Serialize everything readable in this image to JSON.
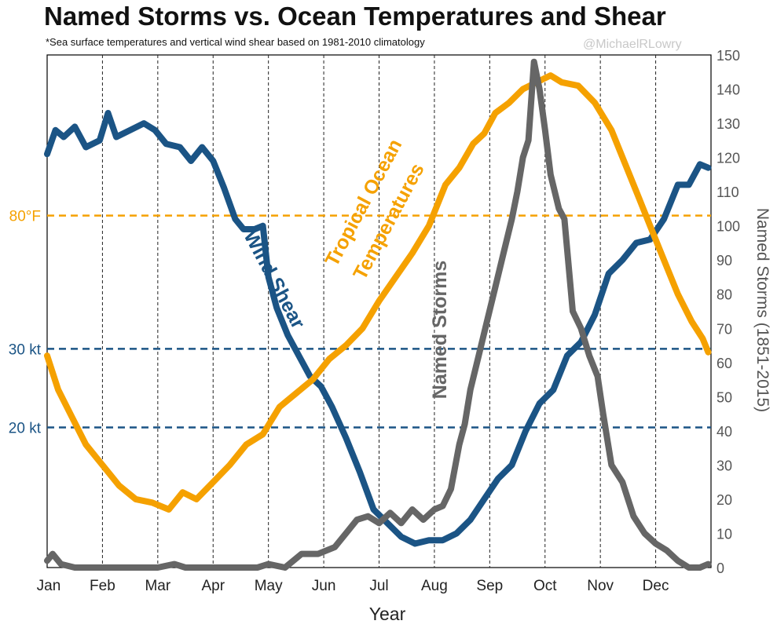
{
  "header": {
    "title": "Named Storms vs. Ocean Temperatures and Shear",
    "subtitle": "*Sea surface temperatures and vertical wind shear based on 1981-2010 climatology",
    "watermark": "@MichaelRLowry"
  },
  "chart_data": {
    "type": "line",
    "title": "Named Storms vs. Ocean Temperatures and Shear",
    "subtitle": "*Sea surface temperatures and vertical wind shear based on 1981-2010 climatology",
    "xlabel": "Year",
    "ylabel_right": "Named Storms (1851-2015)",
    "months": [
      "Jan",
      "Feb",
      "Mar",
      "Apr",
      "May",
      "Jun",
      "Jul",
      "Aug",
      "Sep",
      "Oct",
      "Nov",
      "Dec"
    ],
    "xlim": [
      0,
      12
    ],
    "y_right": {
      "lim": [
        0,
        150
      ],
      "ticks": [
        0,
        10,
        20,
        30,
        40,
        50,
        60,
        70,
        80,
        90,
        100,
        110,
        120,
        130,
        140,
        150
      ]
    },
    "grid": {
      "vertical_dashed_at_months": true
    },
    "reference_lines": [
      {
        "label": "80°F",
        "y": 103,
        "color": "#f5a100"
      },
      {
        "label": "30 kt",
        "y": 64,
        "color": "#1b5485"
      },
      {
        "label": "20 kt",
        "y": 41,
        "color": "#1b5485"
      }
    ],
    "series": [
      {
        "name": "Wind Shear",
        "color": "#1b5485",
        "x": [
          0,
          0.15,
          0.3,
          0.5,
          0.7,
          0.95,
          1.1,
          1.25,
          1.5,
          1.75,
          1.95,
          2.15,
          2.4,
          2.6,
          2.8,
          3.0,
          3.2,
          3.4,
          3.55,
          3.75,
          3.9,
          4.0,
          4.15,
          4.35,
          4.55,
          4.75,
          4.95,
          5.15,
          5.4,
          5.65,
          5.9,
          6.15,
          6.4,
          6.65,
          6.9,
          7.15,
          7.4,
          7.65,
          7.9,
          8.15,
          8.4,
          8.65,
          8.9,
          9.15,
          9.4,
          9.65,
          9.9,
          10.15,
          10.4,
          10.65,
          10.9,
          11.15,
          11.4,
          11.6,
          11.8,
          11.95
        ],
        "y": [
          121,
          128,
          126,
          129,
          123,
          125,
          133,
          126,
          128,
          130,
          128,
          124,
          123,
          119,
          123,
          119,
          111,
          102,
          99,
          99,
          100,
          85,
          76,
          68,
          62,
          56,
          53,
          47,
          38,
          28,
          17,
          13,
          9,
          7,
          8,
          8,
          10,
          14,
          20,
          26,
          30,
          40,
          48,
          52,
          62,
          66,
          74,
          86,
          90,
          95,
          96,
          102,
          112,
          112,
          118,
          117
        ]
      },
      {
        "name": "Tropical Ocean Temperatures",
        "color": "#f5a100",
        "x": [
          0,
          0.2,
          0.45,
          0.7,
          1.0,
          1.3,
          1.6,
          1.9,
          2.2,
          2.45,
          2.7,
          3.0,
          3.3,
          3.6,
          3.9,
          4.2,
          4.5,
          4.8,
          5.1,
          5.4,
          5.7,
          6.0,
          6.3,
          6.6,
          6.9,
          7.2,
          7.45,
          7.7,
          7.9,
          8.1,
          8.35,
          8.6,
          8.85,
          9.1,
          9.3,
          9.6,
          9.9,
          10.2,
          10.45,
          10.7,
          10.9,
          11.15,
          11.4,
          11.65,
          11.85,
          11.95
        ],
        "y": [
          62,
          52,
          44,
          36,
          30,
          24,
          20,
          19,
          17,
          22,
          20,
          25,
          30,
          36,
          39,
          47,
          51,
          55,
          61,
          65,
          70,
          78,
          85,
          92,
          100,
          112,
          117,
          124,
          127,
          133,
          136,
          140,
          142,
          144,
          142,
          141,
          136,
          128,
          118,
          108,
          100,
          90,
          80,
          72,
          67,
          63
        ]
      },
      {
        "name": "Named Storms",
        "color": "#666666",
        "x": [
          0,
          0.1,
          0.25,
          0.5,
          0.75,
          1.0,
          1.5,
          2.0,
          2.3,
          2.5,
          3.0,
          3.5,
          3.8,
          4.0,
          4.3,
          4.6,
          4.9,
          5.2,
          5.4,
          5.6,
          5.8,
          6.0,
          6.2,
          6.4,
          6.6,
          6.8,
          7.0,
          7.15,
          7.3,
          7.45,
          7.55,
          7.65,
          7.8,
          7.95,
          8.1,
          8.25,
          8.4,
          8.5,
          8.6,
          8.7,
          8.8,
          8.9,
          9.0,
          9.1,
          9.25,
          9.35,
          9.5,
          9.65,
          9.8,
          9.95,
          10.05,
          10.2,
          10.4,
          10.6,
          10.8,
          11.0,
          11.2,
          11.4,
          11.6,
          11.8,
          11.95
        ],
        "y": [
          2,
          4,
          1,
          0,
          0,
          0,
          0,
          0,
          1,
          0,
          0,
          0,
          0,
          1,
          0,
          4,
          4,
          6,
          10,
          14,
          15,
          13,
          16,
          13,
          17,
          14,
          17,
          18,
          23,
          36,
          42,
          52,
          62,
          72,
          82,
          92,
          102,
          110,
          120,
          125,
          148,
          140,
          128,
          115,
          105,
          102,
          75,
          70,
          62,
          56,
          45,
          30,
          25,
          15,
          10,
          7,
          5,
          2,
          0,
          0,
          1
        ]
      }
    ]
  },
  "labels": {
    "wind_shear": "Wind Shear",
    "ocean_temps_1": "Tropical Ocean",
    "ocean_temps_2": "Temperatures",
    "named_storms": "Named Storms"
  }
}
